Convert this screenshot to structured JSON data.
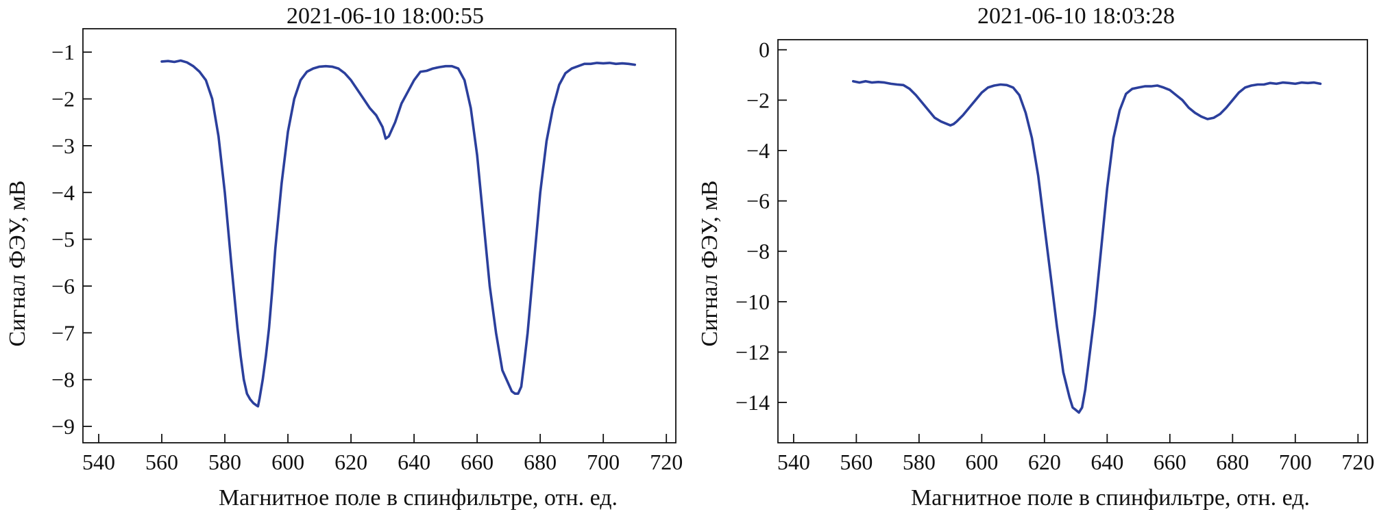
{
  "chart_data": [
    {
      "type": "line",
      "title": "2021-06-10 18:00:55",
      "xlabel": "Магнитное поле в спинфильтре, отн. ед.",
      "ylabel": "Сигнал ФЭУ, мВ",
      "xlim": [
        535,
        723
      ],
      "ylim": [
        -9.35,
        -0.5
      ],
      "x_ticks": [
        540,
        560,
        580,
        600,
        620,
        640,
        660,
        680,
        700,
        720
      ],
      "y_ticks": [
        -1,
        -2,
        -3,
        -4,
        -5,
        -6,
        -7,
        -8,
        -9
      ],
      "x_tick_labels": [
        "540",
        "560",
        "580",
        "600",
        "620",
        "640",
        "660",
        "680",
        "700",
        "720"
      ],
      "y_tick_labels": [
        "−1",
        "−2",
        "−3",
        "−4",
        "−5",
        "−6",
        "−7",
        "−8",
        "−9"
      ],
      "grid": false,
      "color": "#2b3f9c",
      "series": [
        {
          "name": "signal",
          "x": [
            560,
            562,
            564,
            566,
            568,
            570,
            572,
            574,
            576,
            578,
            580,
            582,
            584,
            585,
            586,
            587,
            588,
            589,
            590,
            590.5,
            591,
            592,
            593,
            594,
            595,
            596,
            597,
            598,
            600,
            602,
            604,
            606,
            608,
            610,
            612,
            614,
            616,
            618,
            620,
            622,
            624,
            626,
            628,
            630,
            631,
            632,
            634,
            636,
            638,
            640,
            642,
            644,
            646,
            648,
            650,
            652,
            654,
            656,
            658,
            660,
            662,
            664,
            666,
            668,
            670,
            671,
            672,
            673,
            674,
            675,
            676,
            678,
            680,
            682,
            684,
            686,
            688,
            690,
            692,
            694,
            696,
            698,
            700,
            702,
            704,
            706,
            708,
            710
          ],
          "y": [
            -1.2,
            -1.19,
            -1.21,
            -1.18,
            -1.22,
            -1.3,
            -1.42,
            -1.6,
            -2.0,
            -2.8,
            -4.0,
            -5.5,
            -6.9,
            -7.5,
            -8.0,
            -8.3,
            -8.42,
            -8.5,
            -8.55,
            -8.57,
            -8.4,
            -8.0,
            -7.5,
            -6.9,
            -6.1,
            -5.2,
            -4.5,
            -3.8,
            -2.7,
            -2.0,
            -1.6,
            -1.42,
            -1.35,
            -1.31,
            -1.3,
            -1.31,
            -1.35,
            -1.45,
            -1.6,
            -1.8,
            -2.0,
            -2.2,
            -2.35,
            -2.6,
            -2.85,
            -2.8,
            -2.5,
            -2.1,
            -1.85,
            -1.6,
            -1.42,
            -1.4,
            -1.35,
            -1.32,
            -1.3,
            -1.3,
            -1.35,
            -1.6,
            -2.2,
            -3.2,
            -4.6,
            -6.0,
            -7.0,
            -7.8,
            -8.1,
            -8.25,
            -8.3,
            -8.3,
            -8.15,
            -7.6,
            -7.0,
            -5.5,
            -4.0,
            -2.9,
            -2.2,
            -1.7,
            -1.45,
            -1.35,
            -1.3,
            -1.25,
            -1.25,
            -1.23,
            -1.24,
            -1.23,
            -1.25,
            -1.24,
            -1.25,
            -1.27
          ]
        }
      ]
    },
    {
      "type": "line",
      "title": "2021-06-10 18:03:28",
      "xlabel": "Магнитное поле в спинфильтре, отн. ед.",
      "ylabel": "Сигнал ФЭУ, мВ",
      "xlim": [
        535,
        723
      ],
      "ylim": [
        -15.6,
        0.4
      ],
      "x_ticks": [
        540,
        560,
        580,
        600,
        620,
        640,
        660,
        680,
        700,
        720
      ],
      "y_ticks": [
        0,
        -2,
        -4,
        -6,
        -8,
        -10,
        -12,
        -14
      ],
      "x_tick_labels": [
        "540",
        "560",
        "580",
        "600",
        "620",
        "640",
        "660",
        "680",
        "700",
        "720"
      ],
      "y_tick_labels": [
        "0",
        "−2",
        "−4",
        "−6",
        "−8",
        "−10",
        "−12",
        "−14"
      ],
      "grid": false,
      "color": "#2b3f9c",
      "series": [
        {
          "name": "signal",
          "x": [
            559,
            561,
            563,
            565,
            567,
            569,
            571,
            573,
            575,
            577,
            579,
            581,
            583,
            585,
            587,
            589,
            590,
            591,
            592,
            594,
            596,
            598,
            600,
            602,
            604,
            606,
            608,
            610,
            612,
            614,
            616,
            618,
            620,
            622,
            624,
            626,
            628,
            629,
            630,
            631,
            632,
            633,
            634,
            636,
            638,
            640,
            642,
            644,
            646,
            648,
            650,
            652,
            654,
            656,
            658,
            660,
            662,
            664,
            666,
            668,
            670,
            672,
            674,
            676,
            678,
            680,
            682,
            684,
            686,
            688,
            690,
            692,
            694,
            696,
            698,
            700,
            702,
            704,
            706,
            708
          ],
          "y": [
            -1.25,
            -1.3,
            -1.25,
            -1.3,
            -1.28,
            -1.3,
            -1.35,
            -1.38,
            -1.4,
            -1.55,
            -1.8,
            -2.1,
            -2.4,
            -2.7,
            -2.85,
            -2.95,
            -3.0,
            -2.95,
            -2.85,
            -2.6,
            -2.3,
            -2.0,
            -1.7,
            -1.5,
            -1.42,
            -1.38,
            -1.4,
            -1.5,
            -1.8,
            -2.5,
            -3.5,
            -5.0,
            -7.0,
            -9.0,
            -11.0,
            -12.8,
            -13.8,
            -14.2,
            -14.3,
            -14.4,
            -14.2,
            -13.5,
            -12.5,
            -10.5,
            -8.0,
            -5.5,
            -3.5,
            -2.4,
            -1.75,
            -1.55,
            -1.5,
            -1.45,
            -1.45,
            -1.42,
            -1.5,
            -1.6,
            -1.8,
            -2.0,
            -2.3,
            -2.5,
            -2.65,
            -2.75,
            -2.7,
            -2.55,
            -2.3,
            -2.0,
            -1.7,
            -1.5,
            -1.42,
            -1.38,
            -1.38,
            -1.32,
            -1.35,
            -1.3,
            -1.32,
            -1.35,
            -1.3,
            -1.32,
            -1.3,
            -1.35
          ]
        }
      ]
    }
  ]
}
